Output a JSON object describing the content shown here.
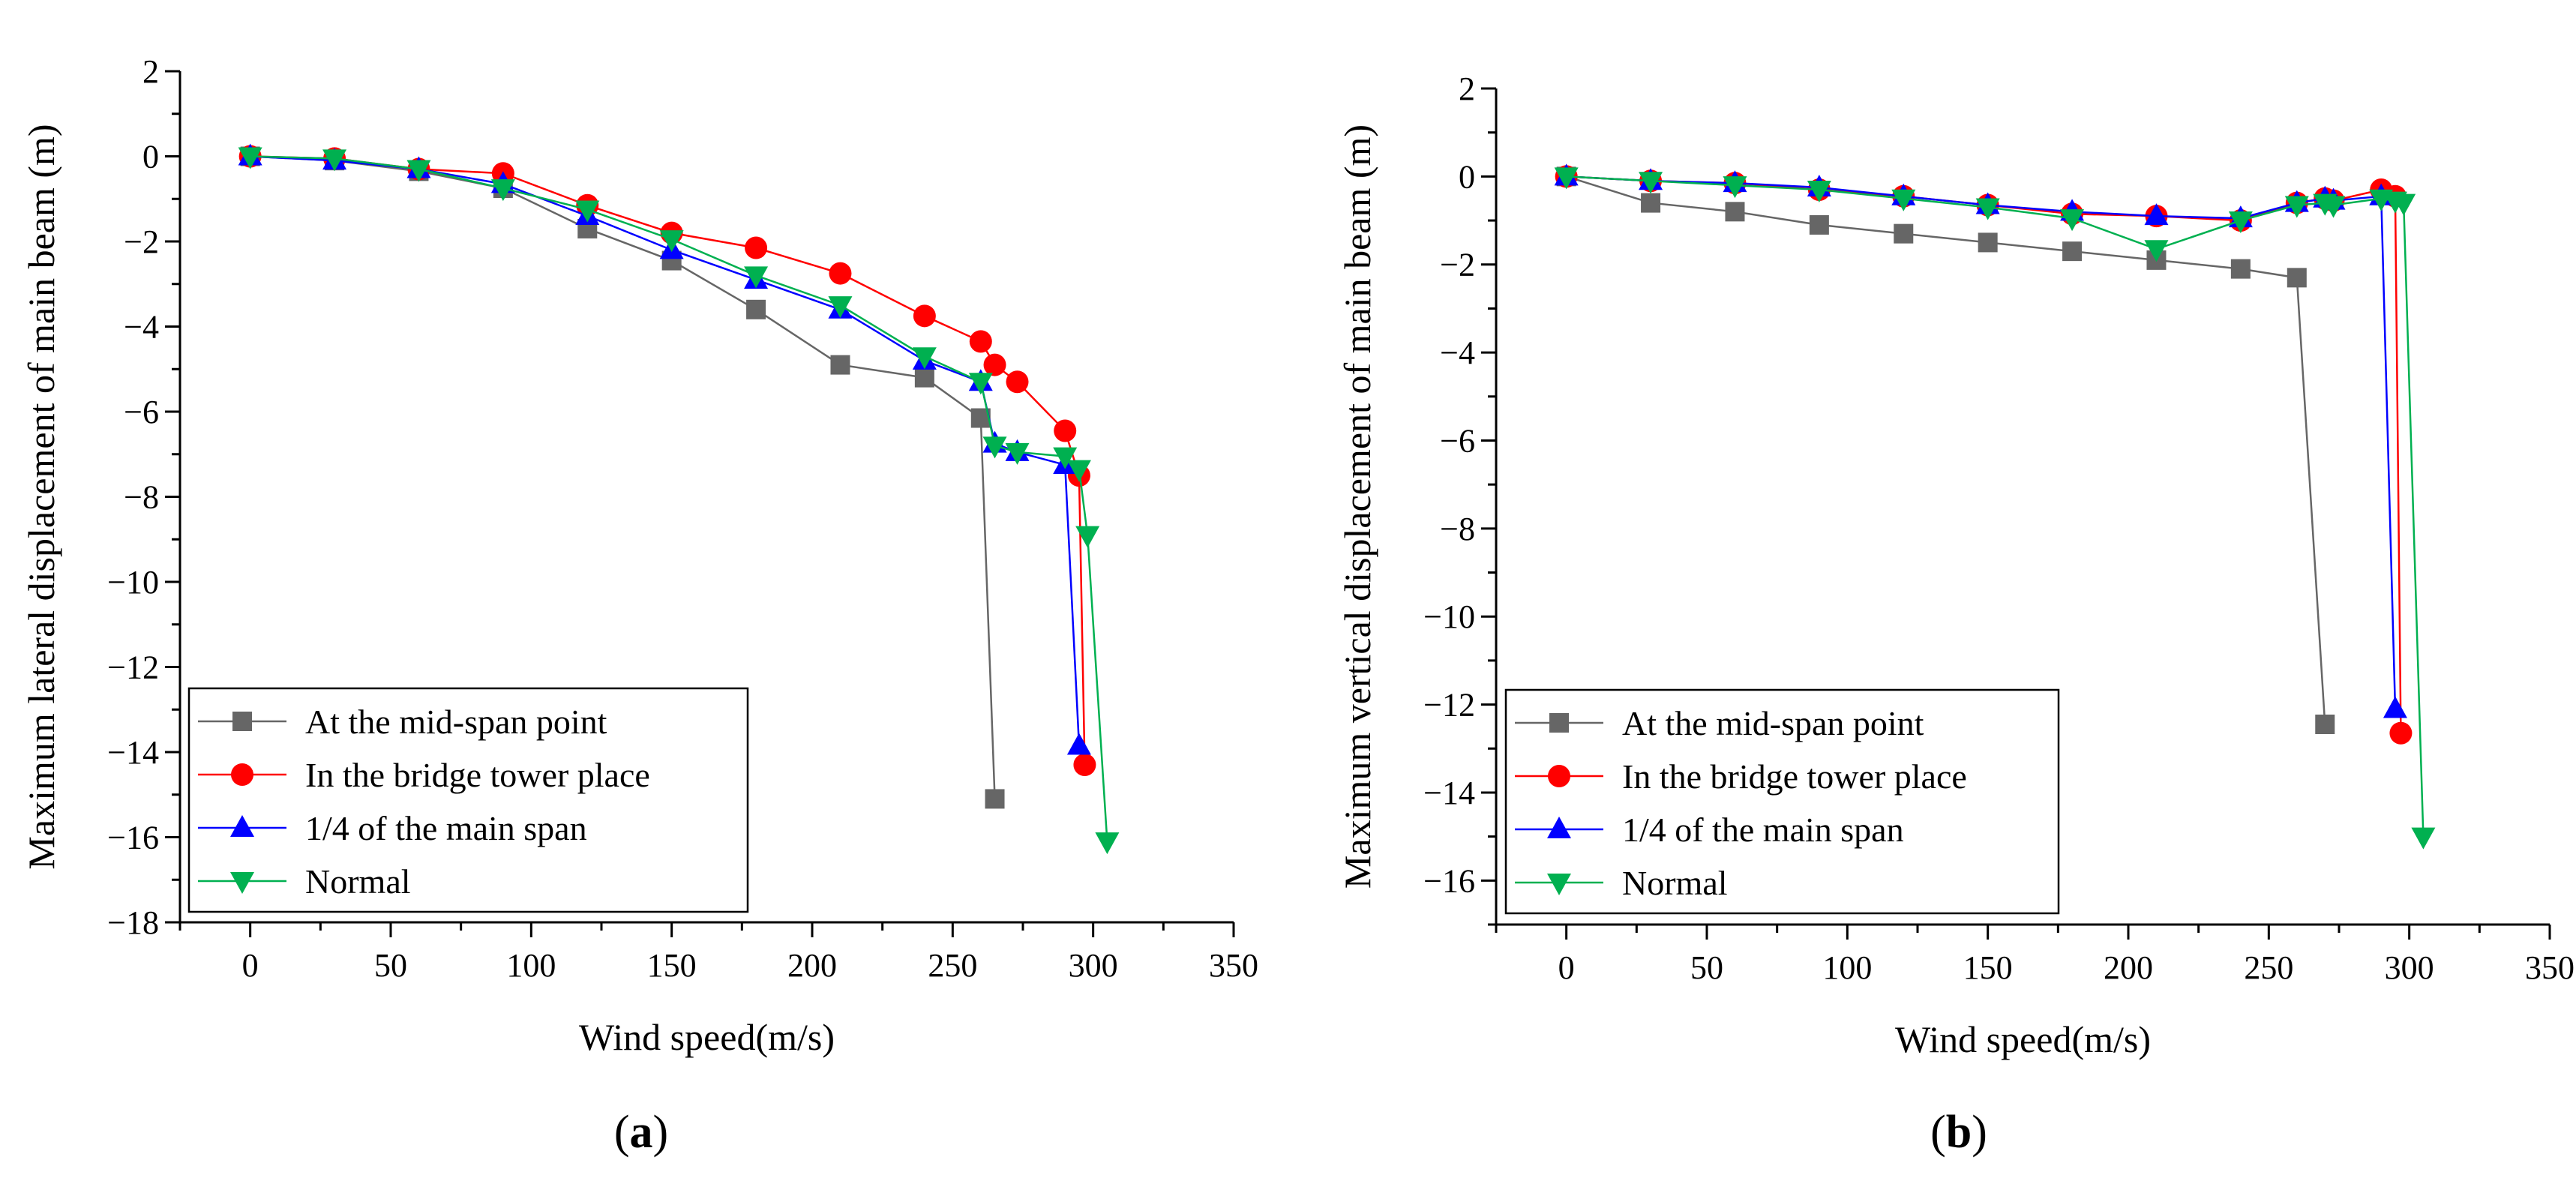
{
  "chart_data": [
    {
      "type": "line",
      "panel": "a",
      "title": "",
      "xlabel": "Wind speed(m/s)",
      "ylabel": "Maximum lateral displacement of main beam (m)",
      "xlim": [
        -25,
        350
      ],
      "ylim": [
        -18,
        2
      ],
      "xticks": [
        0,
        50,
        100,
        150,
        200,
        250,
        300,
        350
      ],
      "yticks": [
        -18,
        -16,
        -14,
        -12,
        -10,
        -8,
        -6,
        -4,
        -2,
        0,
        2
      ],
      "legend_position": "bottom-left",
      "series": [
        {
          "name": "At the mid-span point",
          "color": "#666666",
          "marker": "square",
          "x": [
            0,
            30,
            60,
            90,
            120,
            150,
            180,
            210,
            240,
            260,
            265
          ],
          "y": [
            0,
            -0.1,
            -0.35,
            -0.75,
            -1.7,
            -2.45,
            -3.6,
            -4.9,
            -5.2,
            -6.15,
            -15.1
          ]
        },
        {
          "name": "In the bridge tower place",
          "color": "#ff0000",
          "marker": "circle",
          "x": [
            0,
            30,
            60,
            90,
            120,
            150,
            180,
            210,
            240,
            260,
            265,
            273,
            290,
            295,
            297
          ],
          "y": [
            0,
            -0.05,
            -0.3,
            -0.4,
            -1.15,
            -1.8,
            -2.15,
            -2.75,
            -3.75,
            -4.35,
            -4.9,
            -5.3,
            -6.45,
            -7.5,
            -14.3
          ]
        },
        {
          "name": "1/4 of the main span",
          "color": "#0000ff",
          "marker": "triangle-up",
          "x": [
            0,
            30,
            60,
            90,
            120,
            150,
            180,
            210,
            240,
            260,
            265,
            273,
            290,
            295
          ],
          "y": [
            0,
            -0.1,
            -0.3,
            -0.65,
            -1.4,
            -2.2,
            -2.9,
            -3.6,
            -4.8,
            -5.3,
            -6.75,
            -6.95,
            -7.25,
            -13.85
          ]
        },
        {
          "name": "Normal",
          "color": "#00b050",
          "marker": "triangle-down",
          "x": [
            0,
            30,
            60,
            90,
            120,
            150,
            180,
            210,
            240,
            260,
            265,
            273,
            290,
            295,
            298,
            305
          ],
          "y": [
            0,
            -0.05,
            -0.3,
            -0.75,
            -1.25,
            -1.95,
            -2.8,
            -3.5,
            -4.7,
            -5.3,
            -6.8,
            -6.95,
            -7.05,
            -7.35,
            -8.9,
            -16.1
          ]
        }
      ]
    },
    {
      "type": "line",
      "panel": "b",
      "title": "",
      "xlabel": "Wind speed(m/s)",
      "ylabel": "Maximum vertical displacement of main beam (m)",
      "xlim": [
        -25,
        350
      ],
      "ylim": [
        -17,
        2
      ],
      "xticks": [
        0,
        50,
        100,
        150,
        200,
        250,
        300,
        350
      ],
      "yticks": [
        -16,
        -14,
        -12,
        -10,
        -8,
        -6,
        -4,
        -2,
        0,
        2
      ],
      "legend_position": "bottom-left",
      "series": [
        {
          "name": "At the mid-span point",
          "color": "#666666",
          "marker": "square",
          "x": [
            0,
            30,
            60,
            90,
            120,
            150,
            180,
            210,
            240,
            260,
            270
          ],
          "y": [
            0,
            -0.6,
            -0.8,
            -1.1,
            -1.3,
            -1.5,
            -1.7,
            -1.9,
            -2.1,
            -2.3,
            -12.45
          ]
        },
        {
          "name": "In the bridge tower place",
          "color": "#ff0000",
          "marker": "circle",
          "x": [
            0,
            30,
            60,
            90,
            120,
            150,
            180,
            210,
            240,
            260,
            270,
            273,
            290,
            295,
            297
          ],
          "y": [
            0,
            -0.1,
            -0.15,
            -0.3,
            -0.45,
            -0.65,
            -0.85,
            -0.9,
            -1.0,
            -0.6,
            -0.5,
            -0.55,
            -0.3,
            -0.45,
            -12.65
          ]
        },
        {
          "name": "1/4 of the main span",
          "color": "#0000ff",
          "marker": "triangle-up",
          "x": [
            0,
            30,
            60,
            90,
            120,
            150,
            180,
            210,
            240,
            260,
            270,
            273,
            290,
            295
          ],
          "y": [
            0,
            -0.1,
            -0.15,
            -0.25,
            -0.45,
            -0.65,
            -0.8,
            -0.9,
            -0.95,
            -0.6,
            -0.5,
            -0.55,
            -0.45,
            -12.1
          ]
        },
        {
          "name": "Normal",
          "color": "#00b050",
          "marker": "triangle-down",
          "x": [
            0,
            30,
            60,
            90,
            120,
            150,
            180,
            210,
            240,
            260,
            270,
            273,
            290,
            295,
            298,
            305
          ],
          "y": [
            0,
            -0.1,
            -0.2,
            -0.3,
            -0.5,
            -0.7,
            -0.95,
            -1.65,
            -1.0,
            -0.65,
            -0.6,
            -0.65,
            -0.5,
            -0.55,
            -0.6,
            -15.0
          ]
        }
      ]
    }
  ],
  "panel_labels": [
    {
      "open": "(",
      "letter": "a",
      "close": ")"
    },
    {
      "open": "(",
      "letter": "b",
      "close": ")"
    }
  ]
}
